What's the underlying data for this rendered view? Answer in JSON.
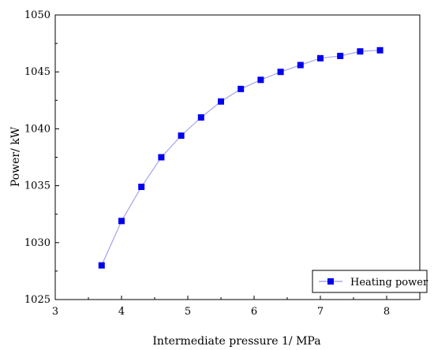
{
  "chart_data": {
    "type": "line",
    "title": "",
    "xlabel": "Intermediate pressure 1/ MPa",
    "ylabel": "Power/ kW",
    "xlim": [
      3,
      8.5
    ],
    "ylim": [
      1025,
      1050
    ],
    "xticks": [
      3,
      4,
      5,
      6,
      7,
      8
    ],
    "yticks": [
      1025,
      1030,
      1035,
      1040,
      1045,
      1050
    ],
    "grid": false,
    "legend_position": "bottom-right",
    "series": [
      {
        "name": "Heating power",
        "color": "#0000ee",
        "line_color": "#a9a9ee",
        "marker": "square",
        "x": [
          3.7,
          4.0,
          4.3,
          4.6,
          4.9,
          5.2,
          5.5,
          5.8,
          6.1,
          6.4,
          6.7,
          7.0,
          7.3,
          7.6,
          7.9
        ],
        "y": [
          1028.0,
          1031.9,
          1034.9,
          1037.5,
          1039.4,
          1041.0,
          1042.4,
          1043.5,
          1044.3,
          1045.0,
          1045.6,
          1046.2,
          1046.4,
          1046.8,
          1046.9
        ]
      }
    ]
  }
}
